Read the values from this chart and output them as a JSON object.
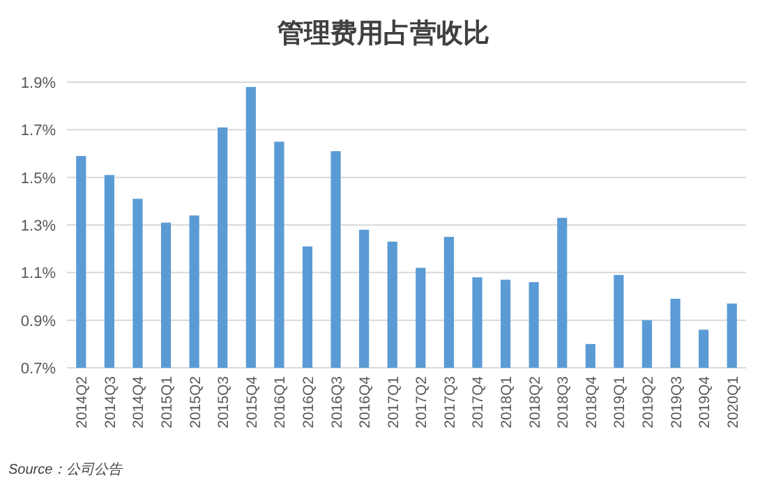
{
  "chart_data": {
    "type": "bar",
    "title": "管理费用占营收比",
    "categories": [
      "2014Q2",
      "2014Q3",
      "2014Q4",
      "2015Q1",
      "2015Q2",
      "2015Q3",
      "2015Q4",
      "2016Q1",
      "2016Q2",
      "2016Q3",
      "2016Q4",
      "2017Q1",
      "2017Q2",
      "2017Q3",
      "2017Q4",
      "2018Q1",
      "2018Q2",
      "2018Q3",
      "2018Q4",
      "2019Q1",
      "2019Q2",
      "2019Q3",
      "2019Q4",
      "2020Q1"
    ],
    "values": [
      1.59,
      1.51,
      1.41,
      1.31,
      1.34,
      1.71,
      1.88,
      1.65,
      1.21,
      1.61,
      1.28,
      1.23,
      1.12,
      1.25,
      1.08,
      1.07,
      1.06,
      1.33,
      0.8,
      1.09,
      0.9,
      0.99,
      0.86,
      0.97
    ],
    "color": "#5b9bd5",
    "ylim": [
      0.7,
      1.9
    ],
    "yticks": [
      {
        "value": 0.7,
        "label": "0.7%"
      },
      {
        "value": 0.9,
        "label": "0.9%"
      },
      {
        "value": 1.1,
        "label": "1.1%"
      },
      {
        "value": 1.3,
        "label": "1.3%"
      },
      {
        "value": 1.5,
        "label": "1.5%"
      },
      {
        "value": 1.7,
        "label": "1.7%"
      },
      {
        "value": 1.9,
        "label": "1.9%"
      }
    ],
    "grid": "y",
    "annotations": [
      "Source：公司公告"
    ]
  }
}
